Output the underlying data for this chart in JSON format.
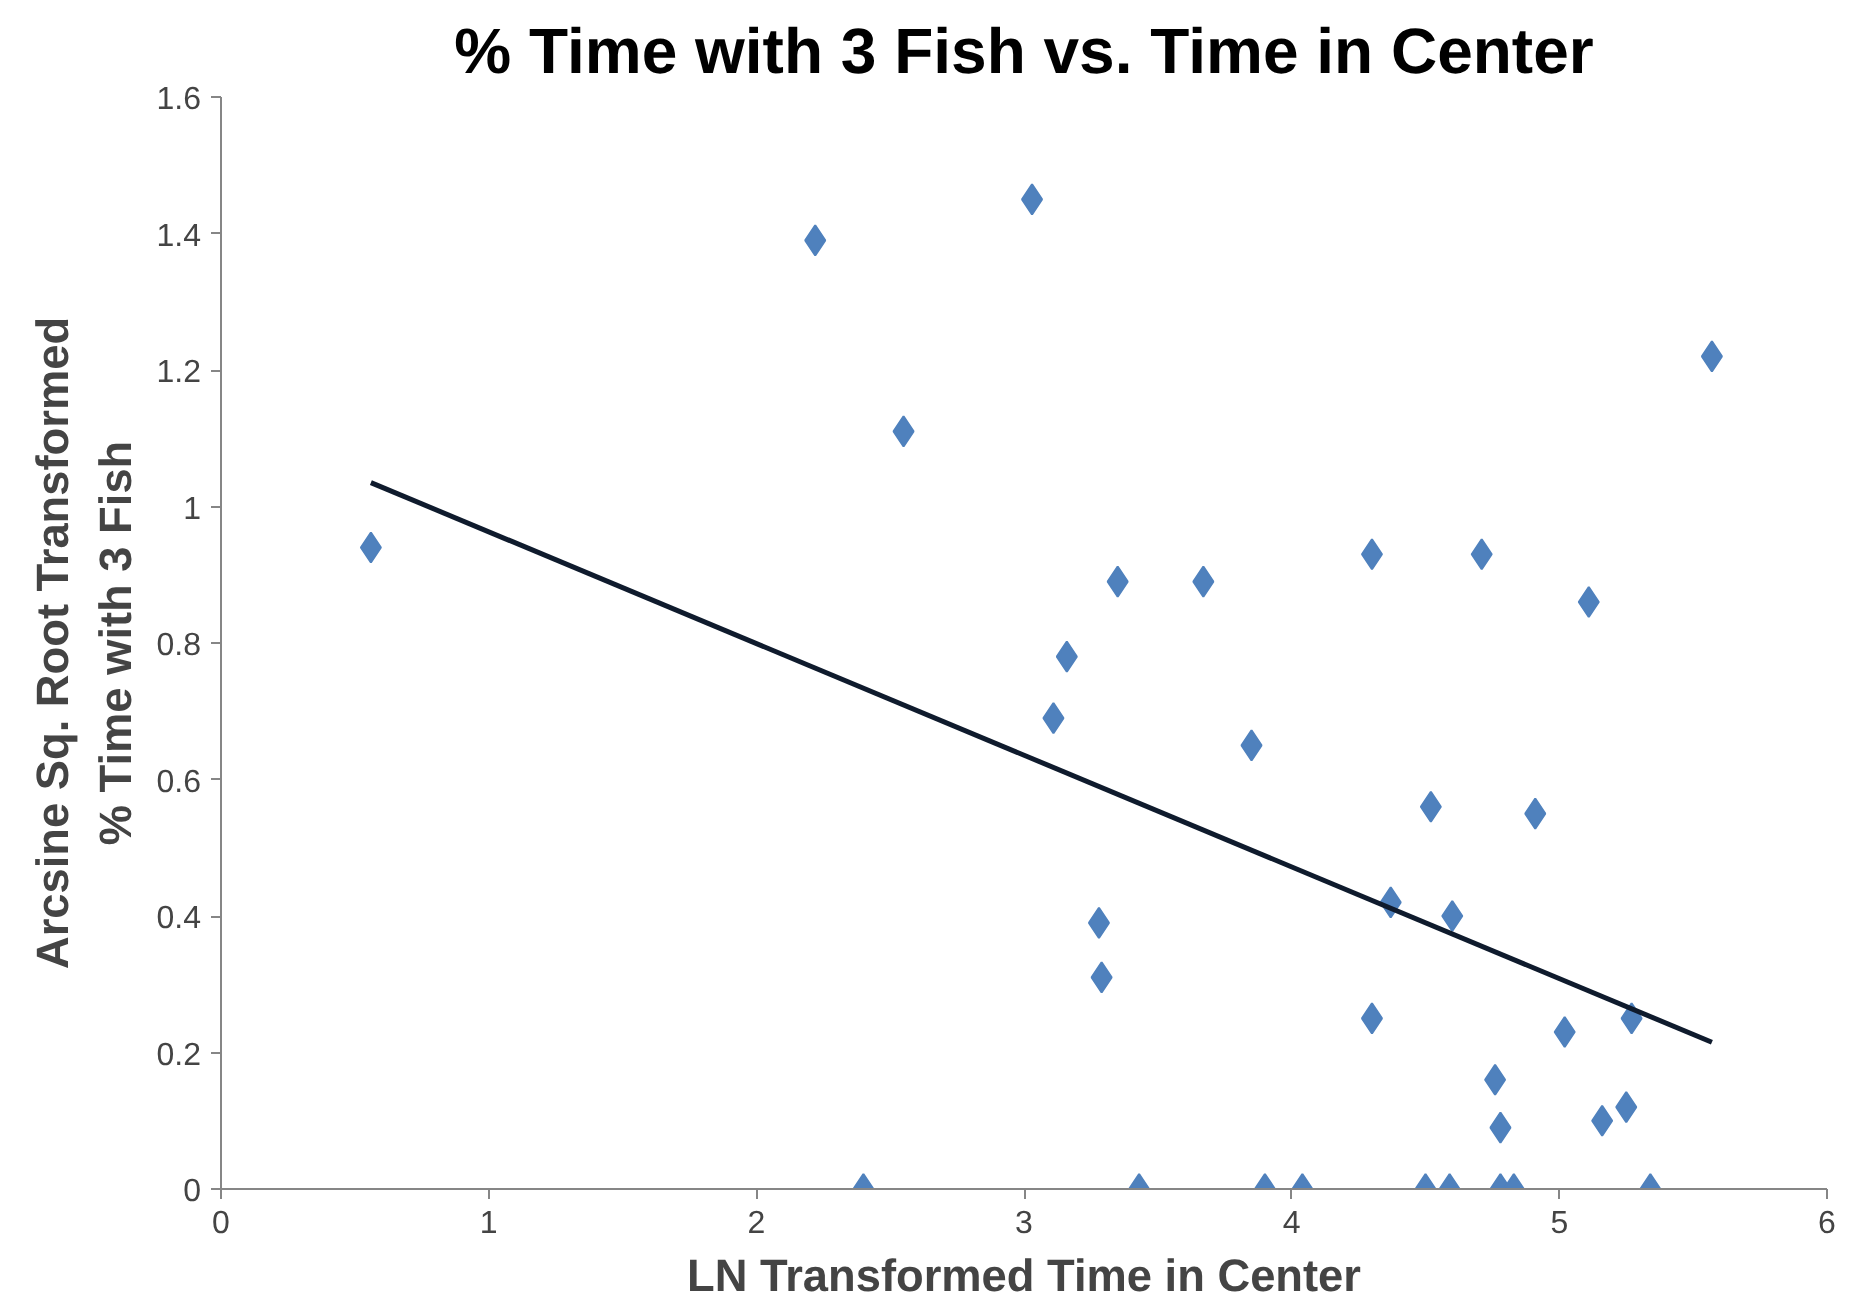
{
  "chart_data": {
    "type": "scatter",
    "title": "% Time with 3 Fish vs. Time in Center",
    "xlabel": "LN Transformed Time in Center",
    "ylabel": "Arcsine Sq. Root Transformed\n% Time with 3 Fish",
    "xlim": [
      0,
      6
    ],
    "ylim": [
      0,
      1.6
    ],
    "xticks": [
      0,
      1,
      2,
      3,
      4,
      5,
      6
    ],
    "yticks": [
      0,
      0.2,
      0.4,
      0.6,
      0.8,
      1,
      1.2,
      1.4,
      1.6
    ],
    "grid": false,
    "marker": "diamond",
    "series": [
      {
        "color": "#4f81bd",
        "x": [
          0.56,
          2.22,
          2.55,
          2.4,
          3.03,
          3.11,
          3.16,
          3.35,
          3.28,
          3.29,
          3.43,
          3.67,
          3.85,
          3.9,
          4.04,
          4.3,
          4.3,
          4.37,
          4.52,
          4.5,
          4.6,
          4.59,
          4.71,
          4.76,
          4.78,
          4.78,
          4.83,
          4.91,
          5.02,
          5.11,
          5.16,
          5.25,
          5.27,
          5.34,
          5.57
        ],
        "values": [
          0.94,
          1.39,
          1.11,
          0,
          1.45,
          0.69,
          0.78,
          0.89,
          0.39,
          0.31,
          0,
          0.89,
          0.65,
          0,
          0,
          0.93,
          0.25,
          0.42,
          0.56,
          0,
          0.4,
          0,
          0.93,
          0.16,
          0.09,
          0,
          0,
          0.55,
          0.23,
          0.86,
          0.1,
          0.12,
          0.25,
          0,
          1.22
        ]
      },
      {
        "type": "line",
        "color": "#0f1b2d",
        "marker": "none",
        "line_style": "solid",
        "x": [
          0.56,
          5.57
        ],
        "values": [
          1.035,
          0.215
        ]
      }
    ]
  }
}
